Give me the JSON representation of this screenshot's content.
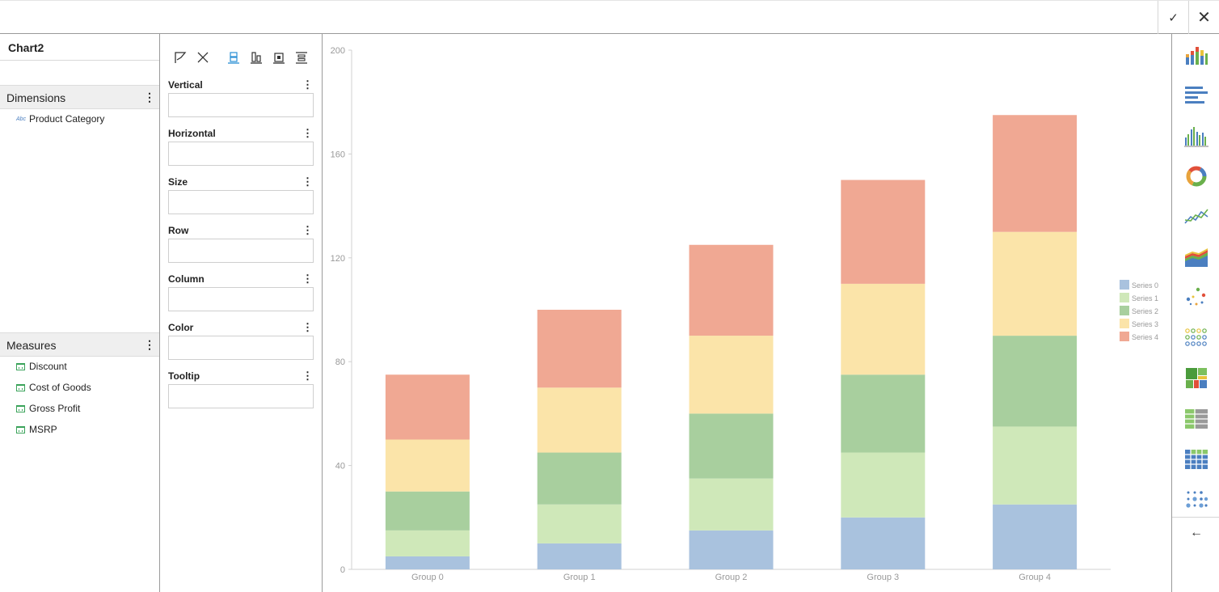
{
  "topbar": {
    "ok_icon": "check-icon",
    "close_icon": "close-icon"
  },
  "left": {
    "chart_name": "Chart2",
    "dimensions_label": "Dimensions",
    "dimensions": [
      {
        "label": "Product Category",
        "icon": "text-field-icon"
      }
    ],
    "measures_label": "Measures",
    "measures": [
      {
        "label": "Discount",
        "icon": "measure-icon"
      },
      {
        "label": "Cost of Goods",
        "icon": "measure-icon"
      },
      {
        "label": "Gross Profit",
        "icon": "measure-icon"
      },
      {
        "label": "MSRP",
        "icon": "measure-icon"
      }
    ]
  },
  "bindings": {
    "tools": [
      "flag-icon",
      "cross-icon",
      "align-vertical-icon",
      "align-bottom-icon",
      "align-center-icon",
      "distribute-icon"
    ],
    "slots": [
      {
        "label": "Vertical"
      },
      {
        "label": "Horizontal"
      },
      {
        "label": "Size"
      },
      {
        "label": "Row"
      },
      {
        "label": "Column"
      },
      {
        "label": "Color"
      },
      {
        "label": "Tooltip"
      }
    ]
  },
  "palette": {
    "items": [
      "stacked-column-chart-icon",
      "horizontal-bar-chart-icon",
      "grouped-column-chart-icon",
      "donut-chart-icon",
      "line-chart-icon",
      "area-chart-icon",
      "scatter-chart-icon",
      "bubble-grid-icon",
      "treemap-icon",
      "table-icon",
      "crosstab-icon",
      "dot-matrix-icon"
    ],
    "back_icon": "arrow-left-icon"
  },
  "colors": {
    "s0": "#a9c2de",
    "s1": "#cfe8b9",
    "s2": "#a8cf9e",
    "s3": "#fbe4a9",
    "s4": "#f0a893"
  },
  "chart_data": {
    "type": "bar",
    "stacked": true,
    "categories": [
      "Group 0",
      "Group 1",
      "Group 2",
      "Group 3",
      "Group 4"
    ],
    "series": [
      {
        "name": "Series 0",
        "values": [
          5,
          10,
          15,
          20,
          25
        ]
      },
      {
        "name": "Series 1",
        "values": [
          10,
          15,
          20,
          25,
          30
        ]
      },
      {
        "name": "Series 2",
        "values": [
          15,
          20,
          25,
          30,
          35
        ]
      },
      {
        "name": "Series 3",
        "values": [
          20,
          25,
          30,
          35,
          40
        ]
      },
      {
        "name": "Series 4",
        "values": [
          25,
          30,
          35,
          40,
          45
        ]
      }
    ],
    "yticks": [
      "0",
      "40",
      "80",
      "120",
      "160",
      "200"
    ],
    "ylim": [
      0,
      200
    ],
    "legend": "right",
    "grid": false
  }
}
